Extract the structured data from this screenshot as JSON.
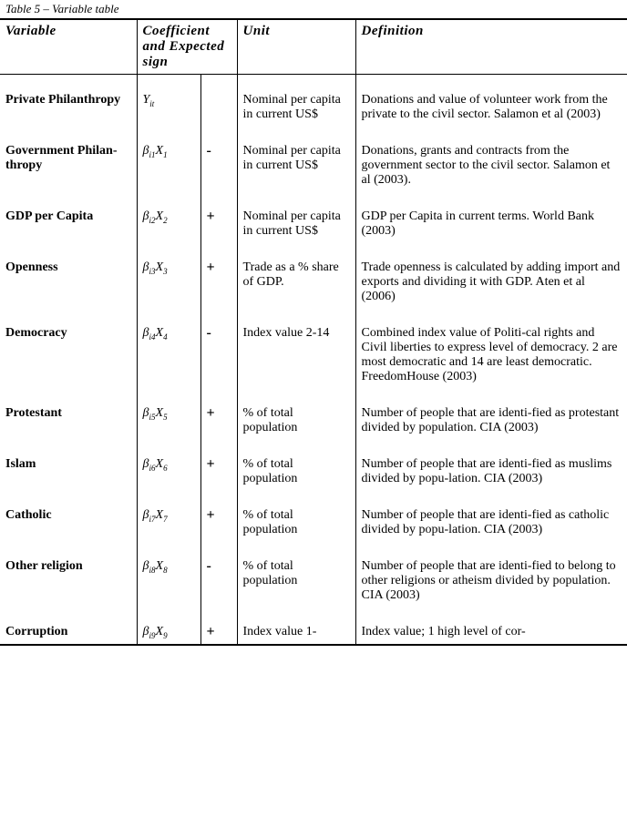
{
  "caption": "Table 5 – Variable table",
  "headers": {
    "variable": "Variable",
    "coef": "Coefficient and Expected sign",
    "unit": "Unit",
    "definition": "Definition"
  },
  "rows": [
    {
      "variable": "Private Philanthropy",
      "coef_html": "<span class='coef-sym'>Y</span><span class='sub'>it</span>",
      "sign": "",
      "unit": "Nominal per capita in current US$",
      "definition": "Donations and value of volunteer work from the private to the civil sector. Salamon et al (2003)"
    },
    {
      "variable": "Government Philan-thropy",
      "coef_html": "<span class='coef-sym'>β</span><span class='sub'>i1</span><span class='coef-sym'>X</span><span class='sub'>1</span>",
      "sign": "-",
      "unit": "Nominal per capita in current US$",
      "definition": "Donations, grants and contracts from the government sector to the civil sector. Salamon et al (2003)."
    },
    {
      "variable": "GDP per Capita",
      "coef_html": "<span class='coef-sym'>β</span><span class='sub'>i2</span><span class='coef-sym'>X</span><span class='sub'>2</span>",
      "sign": "+",
      "unit": "Nominal per capita in current US$",
      "definition": "GDP per Capita in current terms. World Bank (2003)"
    },
    {
      "variable": "Openness",
      "coef_html": "<span class='coef-sym'>β</span><span class='sub'>i3</span><span class='coef-sym'>X</span><span class='sub'>3</span>",
      "sign": "+",
      "unit": "Trade as a % share of GDP.",
      "definition": "Trade openness is calculated by adding import and exports and dividing it with GDP. Aten et al (2006)"
    },
    {
      "variable": "Democracy",
      "coef_html": "<span class='coef-sym'>β</span><span class='sub'>i4</span><span class='coef-sym'>X</span><span class='sub'>4</span>",
      "sign": "-",
      "unit": "Index value 2-14",
      "definition": "Combined index value of Politi-cal rights and Civil liberties to express level of democracy. 2 are most democratic and 14 are least democratic. FreedomHouse (2003)"
    },
    {
      "variable": "Protestant",
      "coef_html": "<span class='coef-sym'>β</span><span class='sub'>i5</span><span class='coef-sym'>X</span><span class='sub'>5</span>",
      "sign": "+",
      "unit": "% of total population",
      "definition": "Number of people that are identi-fied as protestant divided by population. CIA (2003)"
    },
    {
      "variable": "Islam",
      "coef_html": "<span class='coef-sym'>β</span><span class='sub'>i6</span><span class='coef-sym'>X</span><span class='sub'>6</span>",
      "sign": "+",
      "unit": "% of total population",
      "definition": "Number of people that are identi-fied as muslims divided by popu-lation. CIA (2003)"
    },
    {
      "variable": "Catholic",
      "coef_html": "<span class='coef-sym'>β</span><span class='sub'>i7</span><span class='coef-sym'>X</span><span class='sub'>7</span>",
      "sign": "+",
      "unit": "% of total population",
      "definition": "Number of people that are identi-fied as catholic divided by popu-lation. CIA (2003)"
    },
    {
      "variable": "Other religion",
      "coef_html": "<span class='coef-sym'>β</span><span class='sub'>i8</span><span class='coef-sym'>X</span><span class='sub'>8</span>",
      "sign": "-",
      "unit": "% of total population",
      "definition": "Number of people that are identi-fied to belong to other religions or atheism divided by population. CIA (2003)"
    },
    {
      "variable": "Corruption",
      "coef_html": "<span class='coef-sym'>β</span><span class='sub'>i9</span><span class='coef-sym'>X</span><span class='sub'>9</span>",
      "sign": "+",
      "unit": "Index value 1-",
      "definition": "Index value; 1 high level of cor-"
    }
  ]
}
